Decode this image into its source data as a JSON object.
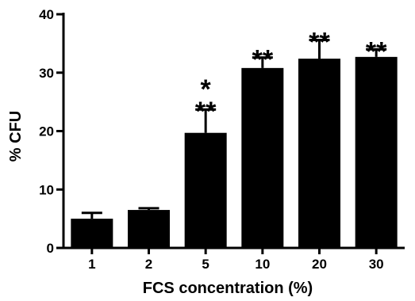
{
  "chart_data": {
    "type": "bar",
    "categories": [
      "1",
      "2",
      "5",
      "10",
      "20",
      "30"
    ],
    "values": [
      5.0,
      6.5,
      19.7,
      30.8,
      32.4,
      32.7
    ],
    "error_bars": [
      1.0,
      0.3,
      4.0,
      1.8,
      3.2,
      1.3
    ],
    "significance": [
      "",
      "",
      "*\n**",
      "**",
      "**",
      "**"
    ],
    "title": "",
    "xlabel": "FCS concentration (%)",
    "ylabel": "% CFU",
    "ylim": [
      0,
      40
    ],
    "yticks": [
      0,
      10,
      20,
      30,
      40
    ],
    "grid": false,
    "bar_color": "#000000"
  }
}
